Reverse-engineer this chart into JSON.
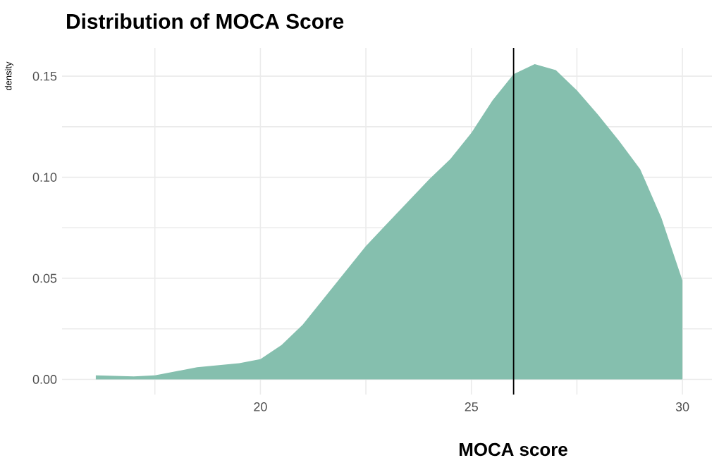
{
  "chart_data": {
    "type": "area",
    "title": "Distribution of MOCA Score",
    "xlabel": "MOCA score",
    "ylabel": "density",
    "x": [
      16.1,
      17,
      17.5,
      18,
      18.5,
      19,
      19.5,
      20,
      20.5,
      21,
      21.5,
      22,
      22.5,
      23,
      23.5,
      24,
      24.5,
      25,
      25.5,
      26,
      26.5,
      27,
      27.5,
      28,
      28.5,
      29,
      29.5,
      30
    ],
    "values": [
      0.002,
      0.0015,
      0.002,
      0.004,
      0.006,
      0.007,
      0.008,
      0.01,
      0.017,
      0.027,
      0.04,
      0.053,
      0.066,
      0.077,
      0.088,
      0.099,
      0.109,
      0.122,
      0.138,
      0.151,
      0.156,
      0.153,
      0.143,
      0.131,
      0.118,
      0.104,
      0.08,
      0.049
    ],
    "color": "#85bfae",
    "xlim": [
      15.3,
      30.7
    ],
    "ylim": [
      -0.0075,
      0.164
    ],
    "xticks": [
      {
        "value": 17.5,
        "label": null
      },
      20,
      {
        "value": 22.5,
        "label": null
      },
      25,
      {
        "value": 27.5,
        "label": null
      },
      30
    ],
    "yticks": [
      {
        "value": 0,
        "label": "0.00"
      },
      {
        "value": 0.025,
        "label": null
      },
      {
        "value": 0.05,
        "label": "0.05"
      },
      {
        "value": 0.075,
        "label": null
      },
      {
        "value": 0.1,
        "label": "0.10"
      },
      {
        "value": 0.125,
        "label": null
      },
      {
        "value": 0.15,
        "label": "0.15"
      }
    ],
    "ref_lines": [
      {
        "axis": "x",
        "value": 26,
        "label": null,
        "color": "#000000"
      }
    ],
    "grid": true
  }
}
